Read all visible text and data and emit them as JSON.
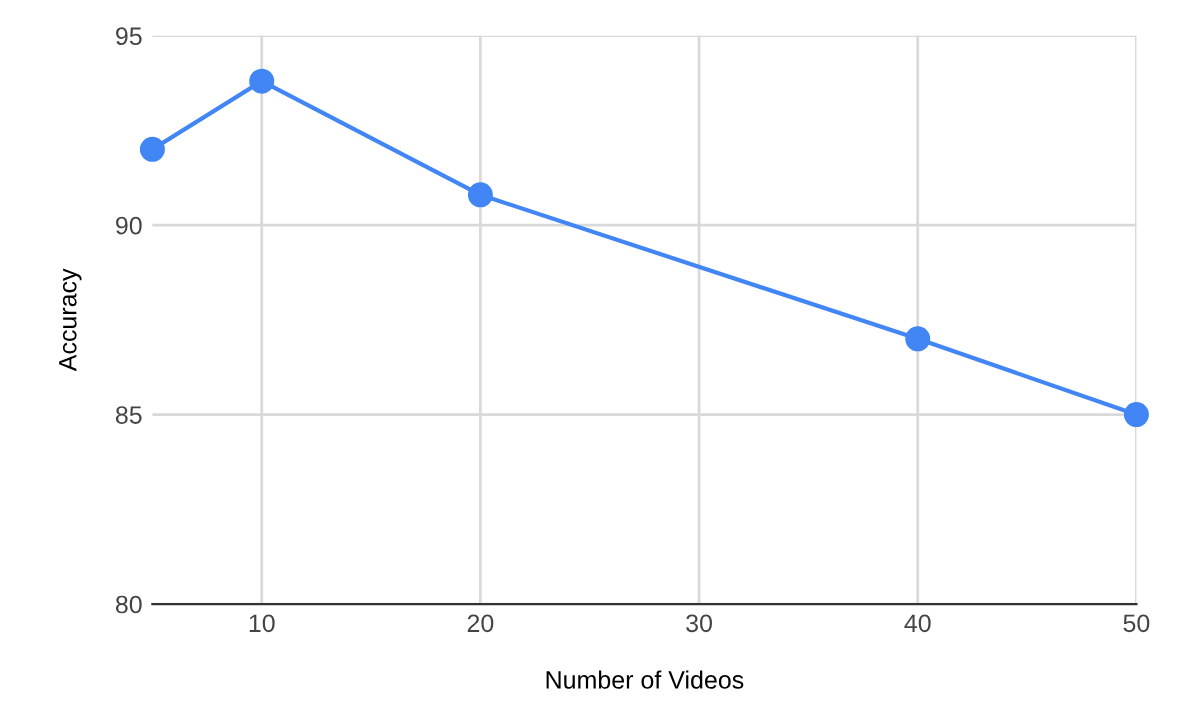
{
  "chart_data": {
    "type": "line",
    "xlabel": "Number of Videos",
    "ylabel": "Accuracy",
    "x": [
      5,
      10,
      20,
      40,
      50
    ],
    "series": [
      {
        "color": "#4285f4",
        "values": [
          92,
          93.8,
          90.8,
          87,
          85
        ]
      }
    ],
    "xlim": [
      5,
      50
    ],
    "xticks": [
      10,
      20,
      30,
      40,
      50
    ],
    "ylim": [
      80,
      95
    ],
    "yticks": [
      80,
      85,
      90,
      95
    ],
    "grid": true,
    "marker": "circle",
    "line_style": "solid",
    "legend": false
  }
}
